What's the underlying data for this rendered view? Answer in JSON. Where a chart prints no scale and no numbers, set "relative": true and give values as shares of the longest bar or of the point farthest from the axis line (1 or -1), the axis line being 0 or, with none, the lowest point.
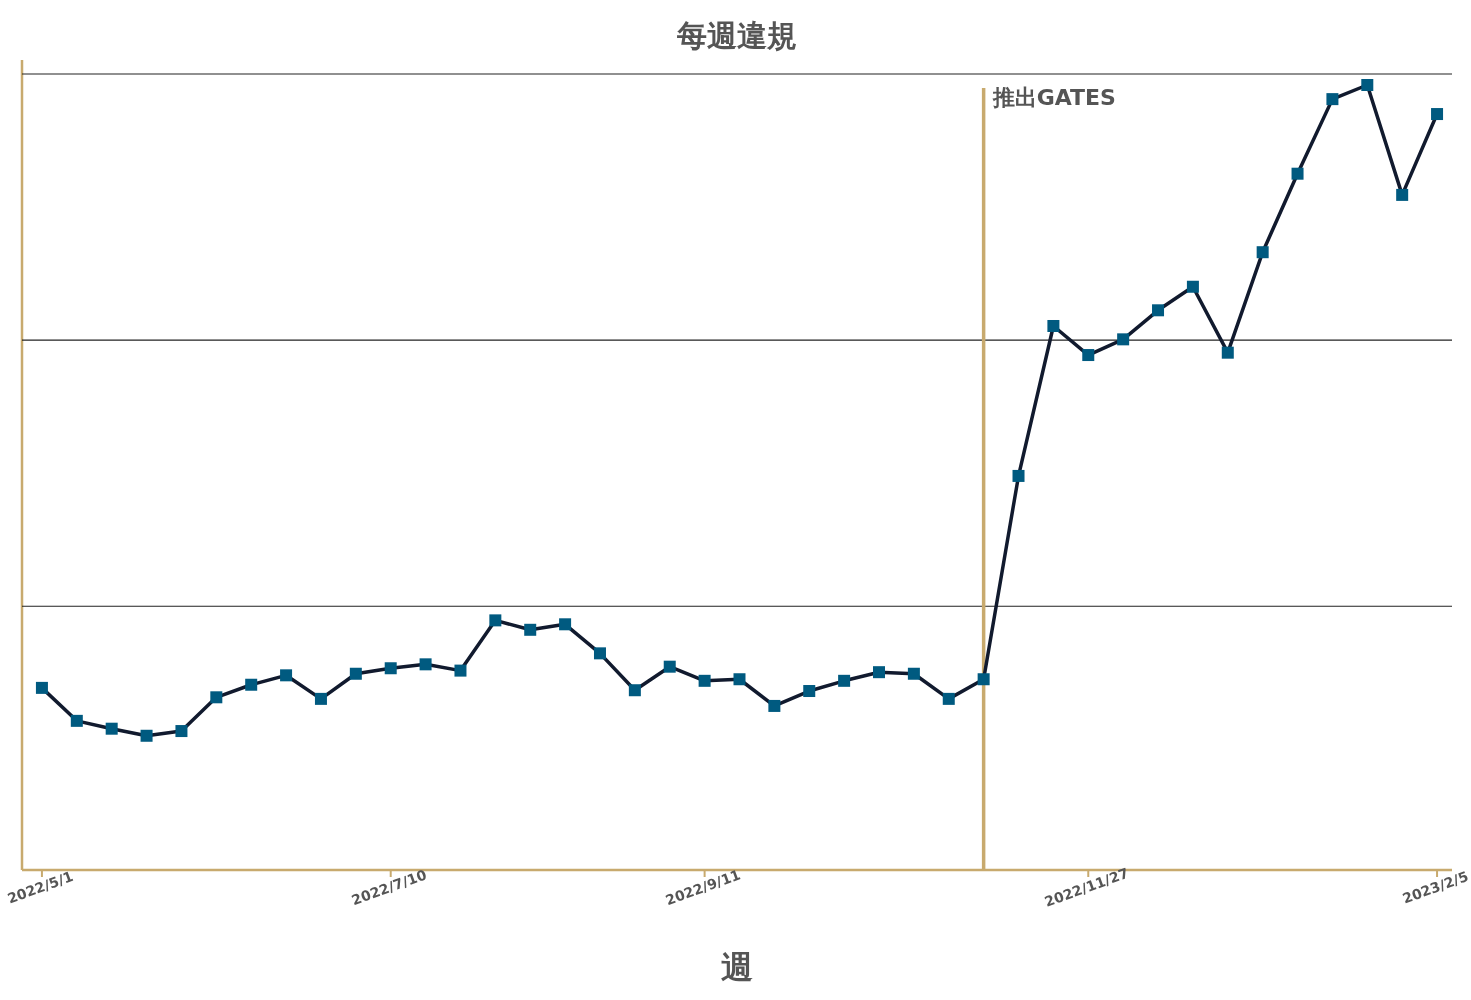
{
  "chart_data": {
    "type": "line",
    "title": "每週違規",
    "xlabel": "週",
    "relative": true,
    "x": [
      "2022-05-01",
      "2022-05-08",
      "2022-05-15",
      "2022-05-22",
      "2022-05-29",
      "2022-06-05",
      "2022-06-12",
      "2022-06-19",
      "2022-06-26",
      "2022-07-03",
      "2022-07-10",
      "2022-07-17",
      "2022-07-24",
      "2022-07-31",
      "2022-08-07",
      "2022-08-14",
      "2022-08-21",
      "2022-08-28",
      "2022-09-04",
      "2022-09-11",
      "2022-09-18",
      "2022-09-25",
      "2022-10-02",
      "2022-10-09",
      "2022-10-16",
      "2022-10-23",
      "2022-10-30",
      "2022-11-06",
      "2022-11-13",
      "2022-11-20",
      "2022-11-27",
      "2022-12-04",
      "2022-12-11",
      "2022-12-18",
      "2022-12-25",
      "2023-01-01",
      "2023-01-08",
      "2023-01-15",
      "2023-01-22",
      "2023-01-29",
      "2023-02-05"
    ],
    "xlim": [
      "2022-04-27",
      "2023-02-08"
    ],
    "xticks": [
      {
        "value": "2022-05-01",
        "label": "2022/5/1"
      },
      {
        "value": "2022-07-10",
        "label": "2022/7/10"
      },
      {
        "value": "2022-09-11",
        "label": "2022/9/11"
      },
      {
        "value": "2022-11-27",
        "label": "2022/11/27"
      },
      {
        "value": "2023-02-05",
        "label": "2023/2/5"
      }
    ],
    "series": [
      {
        "color": "#111a2e",
        "values": [
          0.232,
          0.19,
          0.18,
          0.171,
          0.177,
          0.22,
          0.236,
          0.248,
          0.218,
          0.25,
          0.257,
          0.262,
          0.254,
          0.318,
          0.306,
          0.313,
          0.276,
          0.229,
          0.259,
          0.241,
          0.243,
          0.209,
          0.228,
          0.241,
          0.252,
          0.25,
          0.218,
          0.243,
          0.502,
          0.693,
          0.656,
          0.676,
          0.713,
          0.743,
          0.659,
          0.787,
          0.887,
          0.982,
          1,
          0.86,
          0.963
        ]
      }
    ],
    "marker": "square",
    "ref_lines": [
      {
        "axis": "y",
        "value": 0.336,
        "color": "#222222"
      },
      {
        "axis": "y",
        "value": 0.675,
        "color": "#222222"
      },
      {
        "axis": "y",
        "value": 1.014,
        "color": "#222222"
      },
      {
        "axis": "x",
        "value": "2022-11-06",
        "label": "推出GATES",
        "color": "#c8aa6e"
      }
    ]
  }
}
